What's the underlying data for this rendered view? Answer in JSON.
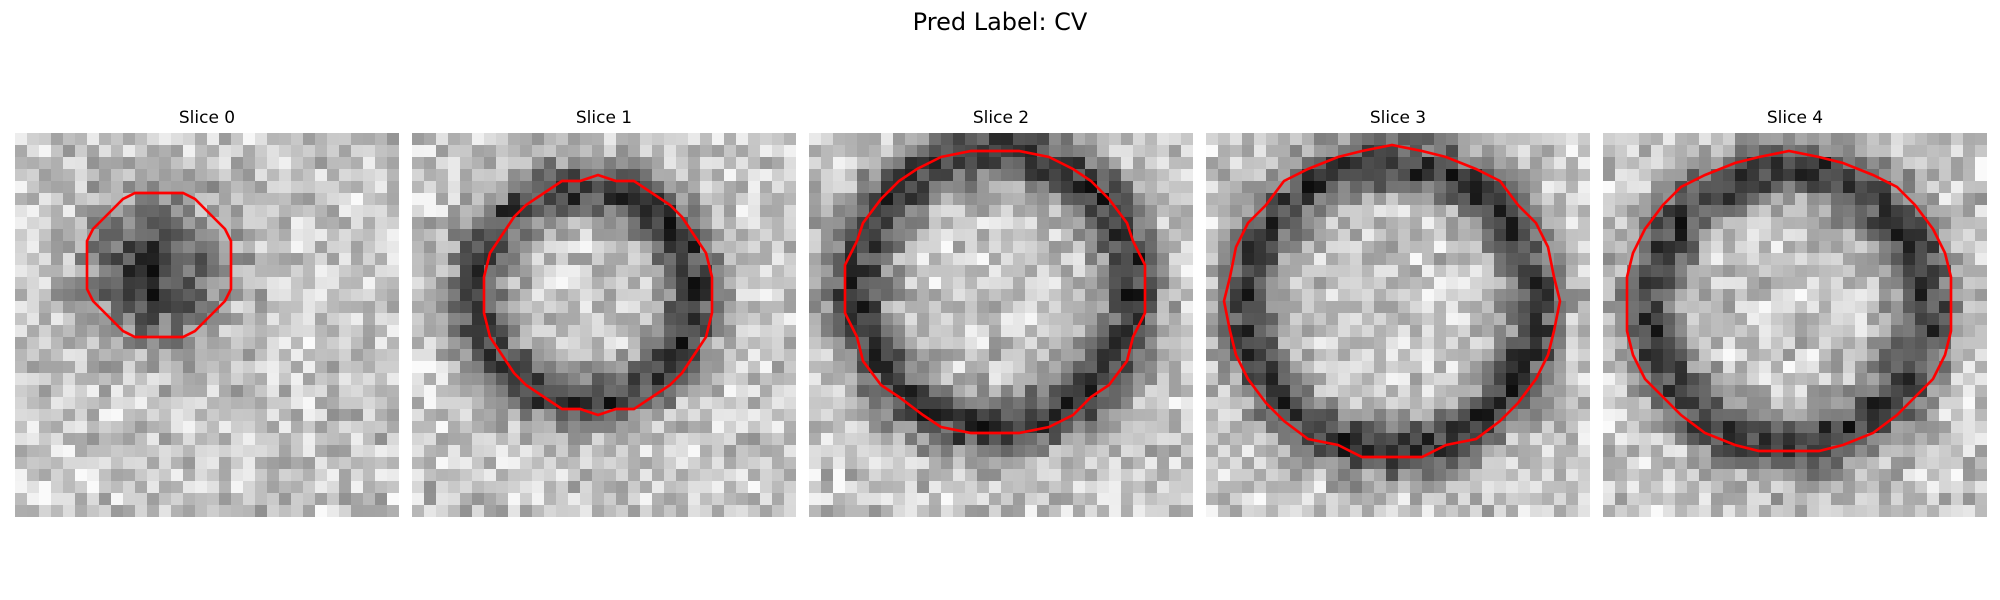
{
  "figure": {
    "title": "Pred Label: CV"
  },
  "slices": [
    {
      "title": "Slice 0"
    },
    {
      "title": "Slice 1"
    },
    {
      "title": "Slice 2"
    },
    {
      "title": "Slice 3"
    },
    {
      "title": "Slice 4"
    }
  ],
  "colors": {
    "contour": "#ff0000",
    "background": "#ffffff",
    "colormap": "grayscale"
  }
}
